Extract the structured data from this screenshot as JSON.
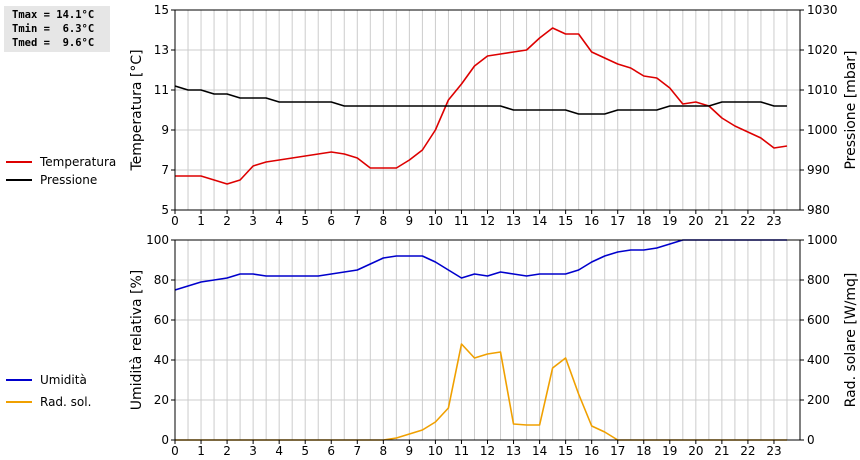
{
  "stats": {
    "tmax": "Tmax = 14.1°C",
    "tmin": "Tmin =  6.3°C",
    "tmed": "Tmed =  9.6°C"
  },
  "colors": {
    "temperature": "#dd0000",
    "pressure": "#000000",
    "humidity": "#0000cc",
    "radiation": "#f0a000",
    "grid": "#cccccc"
  },
  "chart_data": [
    {
      "type": "line",
      "grid": true,
      "x_ticks": [
        0,
        1,
        2,
        3,
        4,
        5,
        6,
        7,
        8,
        9,
        10,
        11,
        12,
        13,
        14,
        15,
        16,
        17,
        18,
        19,
        20,
        21,
        22,
        23
      ],
      "xlim": [
        0,
        24
      ],
      "ylabel": "Temperatura [°C]",
      "ylim": [
        5,
        15
      ],
      "y_ticks": [
        5,
        7,
        9,
        11,
        13,
        15
      ],
      "y2label": "Pressione [mbar]",
      "y2lim": [
        980,
        1030
      ],
      "y2_ticks": [
        980,
        990,
        1000,
        1010,
        1020,
        1030
      ],
      "legend_position": "left",
      "series": [
        {
          "name": "Temperatura",
          "axis": "left",
          "x": [
            0,
            1,
            1.5,
            2,
            2.5,
            3,
            3.5,
            4,
            5,
            6,
            6.5,
            7,
            7.5,
            8,
            8.5,
            9,
            9.5,
            10,
            10.5,
            11,
            11.5,
            12,
            12.5,
            13,
            13.5,
            14,
            14.5,
            15,
            15.5,
            16,
            16.5,
            17,
            17.5,
            18,
            18.5,
            19,
            19.5,
            20,
            20.5,
            21,
            21.5,
            22,
            22.5,
            23,
            23.5
          ],
          "values": [
            6.7,
            6.7,
            6.5,
            6.3,
            6.5,
            7.2,
            7.4,
            7.5,
            7.7,
            7.9,
            7.8,
            7.6,
            7.1,
            7.1,
            7.1,
            7.5,
            8.0,
            9.0,
            10.5,
            11.3,
            12.2,
            12.7,
            12.8,
            12.9,
            13.0,
            13.6,
            14.1,
            13.8,
            13.8,
            12.9,
            12.6,
            12.3,
            12.1,
            11.7,
            11.6,
            11.1,
            10.3,
            10.4,
            10.2,
            9.6,
            9.2,
            8.9,
            8.6,
            8.1,
            8.2
          ]
        },
        {
          "name": "Pressione",
          "axis": "right",
          "x": [
            0,
            0.5,
            1,
            1.5,
            2,
            2.5,
            3,
            3.5,
            4,
            4.5,
            5,
            5.5,
            6,
            6.5,
            7,
            7.5,
            8,
            8.5,
            9,
            9.5,
            10,
            10.5,
            11,
            11.5,
            12,
            12.5,
            13,
            13.5,
            14,
            14.5,
            15,
            15.5,
            16,
            16.5,
            17,
            17.5,
            18,
            18.5,
            19,
            19.5,
            20,
            20.5,
            21,
            21.5,
            22,
            22.5,
            23,
            23.5
          ],
          "values": [
            1011,
            1010,
            1010,
            1009,
            1009,
            1008,
            1008,
            1008,
            1007,
            1007,
            1007,
            1007,
            1007,
            1006,
            1006,
            1006,
            1006,
            1006,
            1006,
            1006,
            1006,
            1006,
            1006,
            1006,
            1006,
            1006,
            1005,
            1005,
            1005,
            1005,
            1005,
            1004,
            1004,
            1004,
            1005,
            1005,
            1005,
            1005,
            1006,
            1006,
            1006,
            1006,
            1007,
            1007,
            1007,
            1007,
            1006,
            1006
          ]
        }
      ]
    },
    {
      "type": "line",
      "grid": true,
      "x_ticks": [
        0,
        1,
        2,
        3,
        4,
        5,
        6,
        7,
        8,
        9,
        10,
        11,
        12,
        13,
        14,
        15,
        16,
        17,
        18,
        19,
        20,
        21,
        22,
        23
      ],
      "xlim": [
        0,
        24
      ],
      "ylabel": "Umidità relativa [%]",
      "ylim": [
        0,
        100
      ],
      "y_ticks": [
        0,
        20,
        40,
        60,
        80,
        100
      ],
      "y2label": "Rad. solare [W/mq]",
      "y2lim": [
        0,
        1000
      ],
      "y2_ticks": [
        0,
        200,
        400,
        600,
        800,
        1000
      ],
      "legend_position": "left",
      "series": [
        {
          "name": "Umidità",
          "axis": "left",
          "x": [
            0,
            0.5,
            1,
            1.5,
            2,
            2.5,
            3,
            3.5,
            4,
            4.5,
            5,
            5.5,
            6,
            6.5,
            7,
            7.5,
            8,
            8.5,
            9,
            9.5,
            10,
            10.5,
            11,
            11.5,
            12,
            12.5,
            13,
            13.5,
            14,
            14.5,
            15,
            15.5,
            16,
            16.5,
            17,
            17.5,
            18,
            18.5,
            19,
            19.5,
            20,
            20.5,
            21,
            21.5,
            22,
            22.5,
            23,
            23.5
          ],
          "values": [
            75,
            77,
            79,
            80,
            81,
            83,
            83,
            82,
            82,
            82,
            82,
            82,
            83,
            84,
            85,
            88,
            91,
            92,
            92,
            92,
            89,
            85,
            81,
            83,
            82,
            84,
            83,
            82,
            83,
            83,
            83,
            85,
            89,
            92,
            94,
            95,
            95,
            96,
            98,
            100,
            100,
            100,
            100,
            100,
            100,
            100,
            100,
            100
          ]
        },
        {
          "name": "Rad. sol.",
          "axis": "right",
          "x": [
            0,
            1,
            2,
            3,
            4,
            5,
            6,
            7,
            8,
            8.5,
            9,
            9.5,
            10,
            10.5,
            11,
            11.5,
            12,
            12.5,
            13,
            13.5,
            14,
            14.5,
            15,
            15.5,
            16,
            16.5,
            17,
            18,
            19,
            20,
            21,
            22,
            23,
            23.5
          ],
          "values": [
            0,
            0,
            0,
            0,
            0,
            0,
            0,
            0,
            0,
            10,
            30,
            50,
            90,
            160,
            480,
            410,
            430,
            440,
            80,
            75,
            75,
            360,
            410,
            230,
            70,
            40,
            0,
            0,
            0,
            0,
            0,
            0,
            0,
            0
          ]
        }
      ]
    }
  ]
}
